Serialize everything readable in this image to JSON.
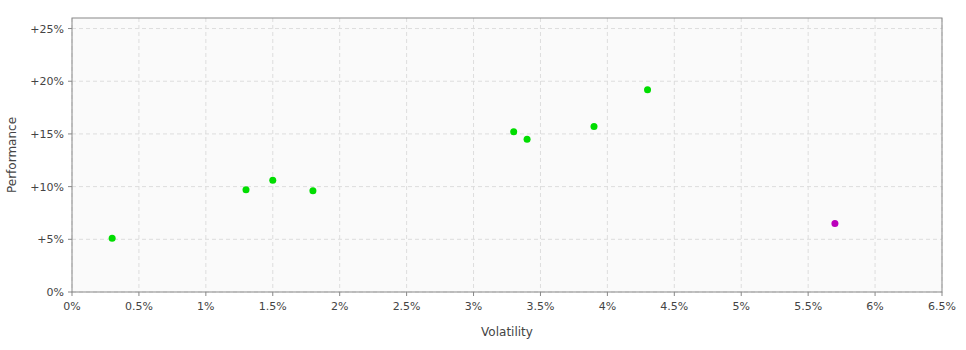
{
  "chart_data": {
    "type": "scatter",
    "xlabel": "Volatility",
    "ylabel": "Performance",
    "xlim": [
      0.0,
      0.065
    ],
    "ylim": [
      0.0,
      0.26
    ],
    "xticks": [
      {
        "value": 0.0,
        "label": "0%"
      },
      {
        "value": 0.005,
        "label": "0.5%"
      },
      {
        "value": 0.01,
        "label": "1%"
      },
      {
        "value": 0.015,
        "label": "1.5%"
      },
      {
        "value": 0.02,
        "label": "2%"
      },
      {
        "value": 0.025,
        "label": "2.5%"
      },
      {
        "value": 0.03,
        "label": "3%"
      },
      {
        "value": 0.035,
        "label": "3.5%"
      },
      {
        "value": 0.04,
        "label": "4%"
      },
      {
        "value": 0.045,
        "label": "4.5%"
      },
      {
        "value": 0.05,
        "label": "5%"
      },
      {
        "value": 0.055,
        "label": "5.5%"
      },
      {
        "value": 0.06,
        "label": "6%"
      },
      {
        "value": 0.065,
        "label": "6.5%"
      }
    ],
    "yticks": [
      {
        "value": 0.0,
        "label": "0%"
      },
      {
        "value": 0.05,
        "label": "+5%"
      },
      {
        "value": 0.1,
        "label": "+10%"
      },
      {
        "value": 0.15,
        "label": "+15%"
      },
      {
        "value": 0.2,
        "label": "+20%"
      },
      {
        "value": 0.25,
        "label": "+25%"
      }
    ],
    "grid": true,
    "series": [
      {
        "color": "#00dd00",
        "x": [
          0.003,
          0.013,
          0.015,
          0.018,
          0.033,
          0.034,
          0.039,
          0.043
        ],
        "values": [
          0.051,
          0.097,
          0.106,
          0.096,
          0.152,
          0.145,
          0.157,
          0.192
        ]
      },
      {
        "color": "#bb00bb",
        "x": [
          0.057
        ],
        "values": [
          0.065
        ]
      }
    ]
  }
}
